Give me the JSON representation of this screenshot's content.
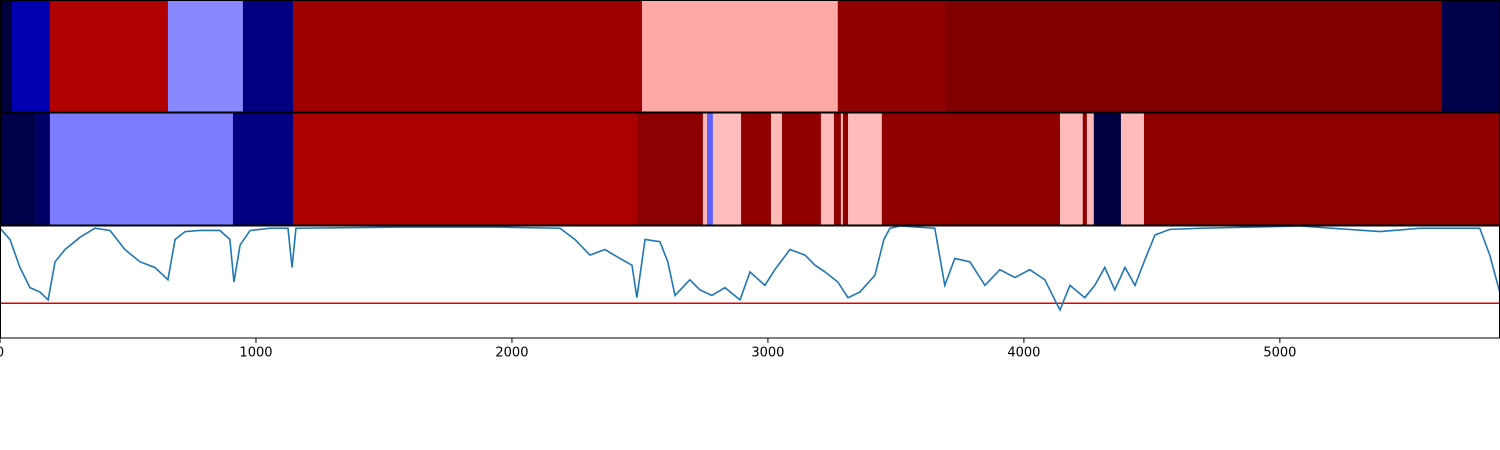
{
  "chart_data": [
    {
      "type": "strip",
      "bins": [
        0,
        47,
        195,
        656,
        949,
        1145,
        2508,
        3273,
        3691,
        5633,
        5860
      ],
      "colors": [
        "#00003a",
        "#0000b0",
        "#b00000",
        "#8888ff",
        "#000080",
        "#9e0000",
        "#ffa8a8",
        "#900000",
        "#800000",
        "#00004a"
      ],
      "xlim": [
        0,
        5860
      ]
    },
    {
      "type": "strip",
      "bins": [
        0,
        137,
        195,
        910,
        1145,
        2488,
        2746,
        2762,
        2785,
        2895,
        3012,
        3055,
        3207,
        3258,
        3285,
        3293,
        3313,
        3445,
        3711,
        4141,
        4230,
        4246,
        4273,
        4379,
        4469,
        5860
      ],
      "colors": [
        "#00004a",
        "#000066",
        "#7b7bff",
        "#000080",
        "#ac0000",
        "#8b0000",
        "#ffb8b8",
        "#6060ff",
        "#ffbcbc",
        "#900000",
        "#ffbaba",
        "#900000",
        "#ffbaba",
        "#900000",
        "#ffbaba",
        "#900000",
        "#ffbaba",
        "#900000",
        "#8e0000",
        "#ffbaba",
        "#8e0000",
        "#ffbaba",
        "#000040",
        "#ffbaba",
        "#8e0000"
      ],
      "xlim": [
        0,
        5860
      ]
    },
    {
      "type": "line",
      "x": [
        0,
        39,
        78,
        117,
        156,
        188,
        215,
        254,
        313,
        371,
        430,
        488,
        547,
        605,
        656,
        684,
        723,
        781,
        859,
        898,
        914,
        938,
        977,
        1055,
        1125,
        1141,
        1156,
        1563,
        1953,
        2188,
        2246,
        2305,
        2363,
        2422,
        2469,
        2488,
        2520,
        2578,
        2609,
        2637,
        2695,
        2734,
        2781,
        2832,
        2891,
        2930,
        2988,
        3027,
        3086,
        3145,
        3184,
        3223,
        3273,
        3313,
        3359,
        3418,
        3453,
        3477,
        3516,
        3652,
        3691,
        3730,
        3789,
        3848,
        3906,
        3965,
        4023,
        4082,
        4121,
        4141,
        4180,
        4238,
        4277,
        4316,
        4355,
        4395,
        4434,
        4473,
        4512,
        4570,
        4688,
        5078,
        5391,
        5547,
        5781,
        5820,
        5859
      ],
      "series": [
        {
          "color": "#1f77b4",
          "values": [
            0.98,
            0.88,
            0.63,
            0.45,
            0.41,
            0.34,
            0.68,
            0.79,
            0.9,
            0.98,
            0.96,
            0.79,
            0.68,
            0.63,
            0.52,
            0.88,
            0.95,
            0.96,
            0.96,
            0.88,
            0.5,
            0.83,
            0.96,
            0.98,
            0.98,
            0.63,
            0.98,
            0.99,
            0.99,
            0.98,
            0.88,
            0.74,
            0.79,
            0.71,
            0.65,
            0.36,
            0.88,
            0.86,
            0.68,
            0.38,
            0.52,
            0.43,
            0.38,
            0.45,
            0.34,
            0.59,
            0.47,
            0.61,
            0.79,
            0.74,
            0.65,
            0.59,
            0.5,
            0.36,
            0.41,
            0.56,
            0.88,
            0.98,
            1.0,
            0.98,
            0.47,
            0.71,
            0.68,
            0.47,
            0.61,
            0.54,
            0.61,
            0.52,
            0.34,
            0.25,
            0.47,
            0.36,
            0.47,
            0.63,
            0.43,
            0.63,
            0.47,
            0.7,
            0.92,
            0.97,
            0.98,
            1.0,
            0.95,
            0.98,
            0.98,
            0.74,
            0.41
          ]
        }
      ],
      "hline": 0.31,
      "hline_color": "#e00000",
      "xlim": [
        0,
        5860
      ],
      "ylim": [
        0,
        1.0
      ],
      "xticks": [
        0,
        1000,
        2000,
        3000,
        4000,
        5000
      ]
    }
  ]
}
